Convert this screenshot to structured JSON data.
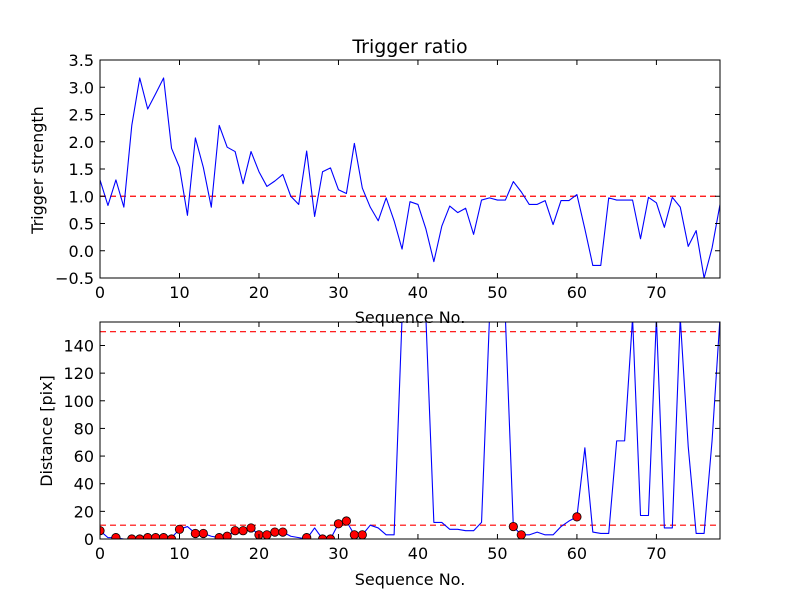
{
  "chart_data": [
    {
      "type": "line",
      "title": "Trigger ratio",
      "xlabel": "Sequence No.",
      "ylabel": "Trigger strength",
      "xlim": [
        0,
        78
      ],
      "ylim": [
        -0.5,
        3.5
      ],
      "xticks": [
        0,
        10,
        20,
        30,
        40,
        50,
        60,
        70
      ],
      "yticks": [
        -0.5,
        0.0,
        0.5,
        1.0,
        1.5,
        2.0,
        2.5,
        3.0,
        3.5
      ],
      "ytick_labels": [
        "−0.5",
        "0.0",
        "0.5",
        "1.0",
        "1.5",
        "2.0",
        "2.5",
        "3.0",
        "3.5"
      ],
      "threshold": 1.0,
      "threshold_color": "#ff0000",
      "line_color": "#0000ff",
      "x": [
        0,
        1,
        2,
        3,
        4,
        5,
        6,
        7,
        8,
        9,
        10,
        11,
        12,
        13,
        14,
        15,
        16,
        17,
        18,
        19,
        20,
        21,
        22,
        23,
        24,
        25,
        26,
        27,
        28,
        29,
        30,
        31,
        32,
        33,
        34,
        35,
        36,
        37,
        38,
        39,
        40,
        41,
        42,
        43,
        44,
        45,
        46,
        47,
        48,
        49,
        50,
        51,
        52,
        53,
        54,
        55,
        56,
        57,
        58,
        59,
        60,
        61,
        62,
        63,
        64,
        65,
        66,
        67,
        68,
        69,
        70,
        71,
        72,
        73,
        74,
        75,
        76,
        77,
        78
      ],
      "series": [
        {
          "values": [
            1.3,
            0.83,
            1.3,
            0.8,
            2.3,
            3.17,
            2.6,
            2.88,
            3.17,
            1.88,
            1.53,
            0.65,
            2.07,
            1.53,
            0.8,
            2.3,
            1.9,
            1.82,
            1.23,
            1.82,
            1.45,
            1.18,
            1.28,
            1.4,
            1.0,
            0.85,
            1.83,
            0.63,
            1.45,
            1.52,
            1.12,
            1.05,
            1.97,
            1.15,
            0.8,
            0.55,
            0.97,
            0.55,
            0.03,
            0.9,
            0.85,
            0.4,
            -0.2,
            0.45,
            0.82,
            0.7,
            0.78,
            0.3,
            0.93,
            0.97,
            0.93,
            0.93,
            1.27,
            1.08,
            0.85,
            0.85,
            0.92,
            0.48,
            0.92,
            0.92,
            1.03,
            0.4,
            -0.27,
            -0.27,
            0.97,
            0.93,
            0.93,
            0.93,
            0.22,
            0.98,
            0.88,
            0.43,
            0.98,
            0.8,
            0.08,
            0.37,
            -0.5,
            0.05,
            0.85
          ]
        }
      ]
    },
    {
      "type": "line",
      "title": "",
      "xlabel": "Sequence No.",
      "ylabel": "Distance [pix]",
      "xlim": [
        0,
        78
      ],
      "ylim": [
        0,
        157
      ],
      "xticks": [
        0,
        10,
        20,
        30,
        40,
        50,
        60,
        70
      ],
      "yticks": [
        0,
        20,
        40,
        60,
        80,
        100,
        120,
        140
      ],
      "thresholds": [
        10,
        150
      ],
      "threshold_color": "#ff0000",
      "line_color": "#0000ff",
      "marker_color": "#ff0000",
      "x": [
        0,
        1,
        2,
        3,
        4,
        5,
        6,
        7,
        8,
        9,
        10,
        11,
        12,
        13,
        14,
        15,
        16,
        17,
        18,
        19,
        20,
        21,
        22,
        23,
        24,
        25,
        26,
        27,
        28,
        29,
        30,
        31,
        32,
        33,
        34,
        35,
        36,
        37,
        38,
        39,
        40,
        41,
        42,
        43,
        44,
        45,
        46,
        47,
        48,
        49,
        50,
        51,
        52,
        53,
        54,
        55,
        56,
        57,
        58,
        59,
        60,
        61,
        62,
        63,
        64,
        65,
        66,
        67,
        68,
        69,
        70,
        71,
        72,
        73,
        74,
        75,
        76,
        77,
        78
      ],
      "series": [
        {
          "values": [
            6,
            1,
            1,
            0,
            0,
            1,
            2,
            2,
            1,
            1,
            7,
            9,
            4,
            4,
            2,
            1,
            2,
            6,
            6,
            8,
            3,
            3,
            5,
            5,
            2,
            1,
            0,
            8,
            0,
            0,
            11,
            13,
            3,
            3,
            10,
            8,
            3,
            3,
            160,
            160,
            160,
            160,
            12,
            12,
            7,
            7,
            6,
            6,
            12,
            160,
            160,
            160,
            9,
            3,
            3,
            5,
            3,
            3,
            9,
            13,
            16,
            66,
            5,
            4,
            4,
            71,
            71,
            160,
            17,
            17,
            160,
            8,
            8,
            160,
            67,
            4,
            4,
            71,
            160
          ]
        }
      ],
      "markers": {
        "x": [
          0,
          2,
          4,
          5,
          6,
          7,
          8,
          9,
          10,
          12,
          13,
          15,
          16,
          17,
          18,
          19,
          20,
          21,
          22,
          23,
          26,
          28,
          29,
          30,
          31,
          32,
          33,
          52,
          53,
          60
        ],
        "y": [
          6,
          1,
          0,
          0,
          1,
          1,
          1,
          0,
          7,
          4,
          4,
          1,
          2,
          6,
          6,
          8,
          3,
          3,
          5,
          5,
          1,
          0,
          0,
          11,
          13,
          3,
          3,
          9,
          3,
          16
        ]
      }
    }
  ]
}
